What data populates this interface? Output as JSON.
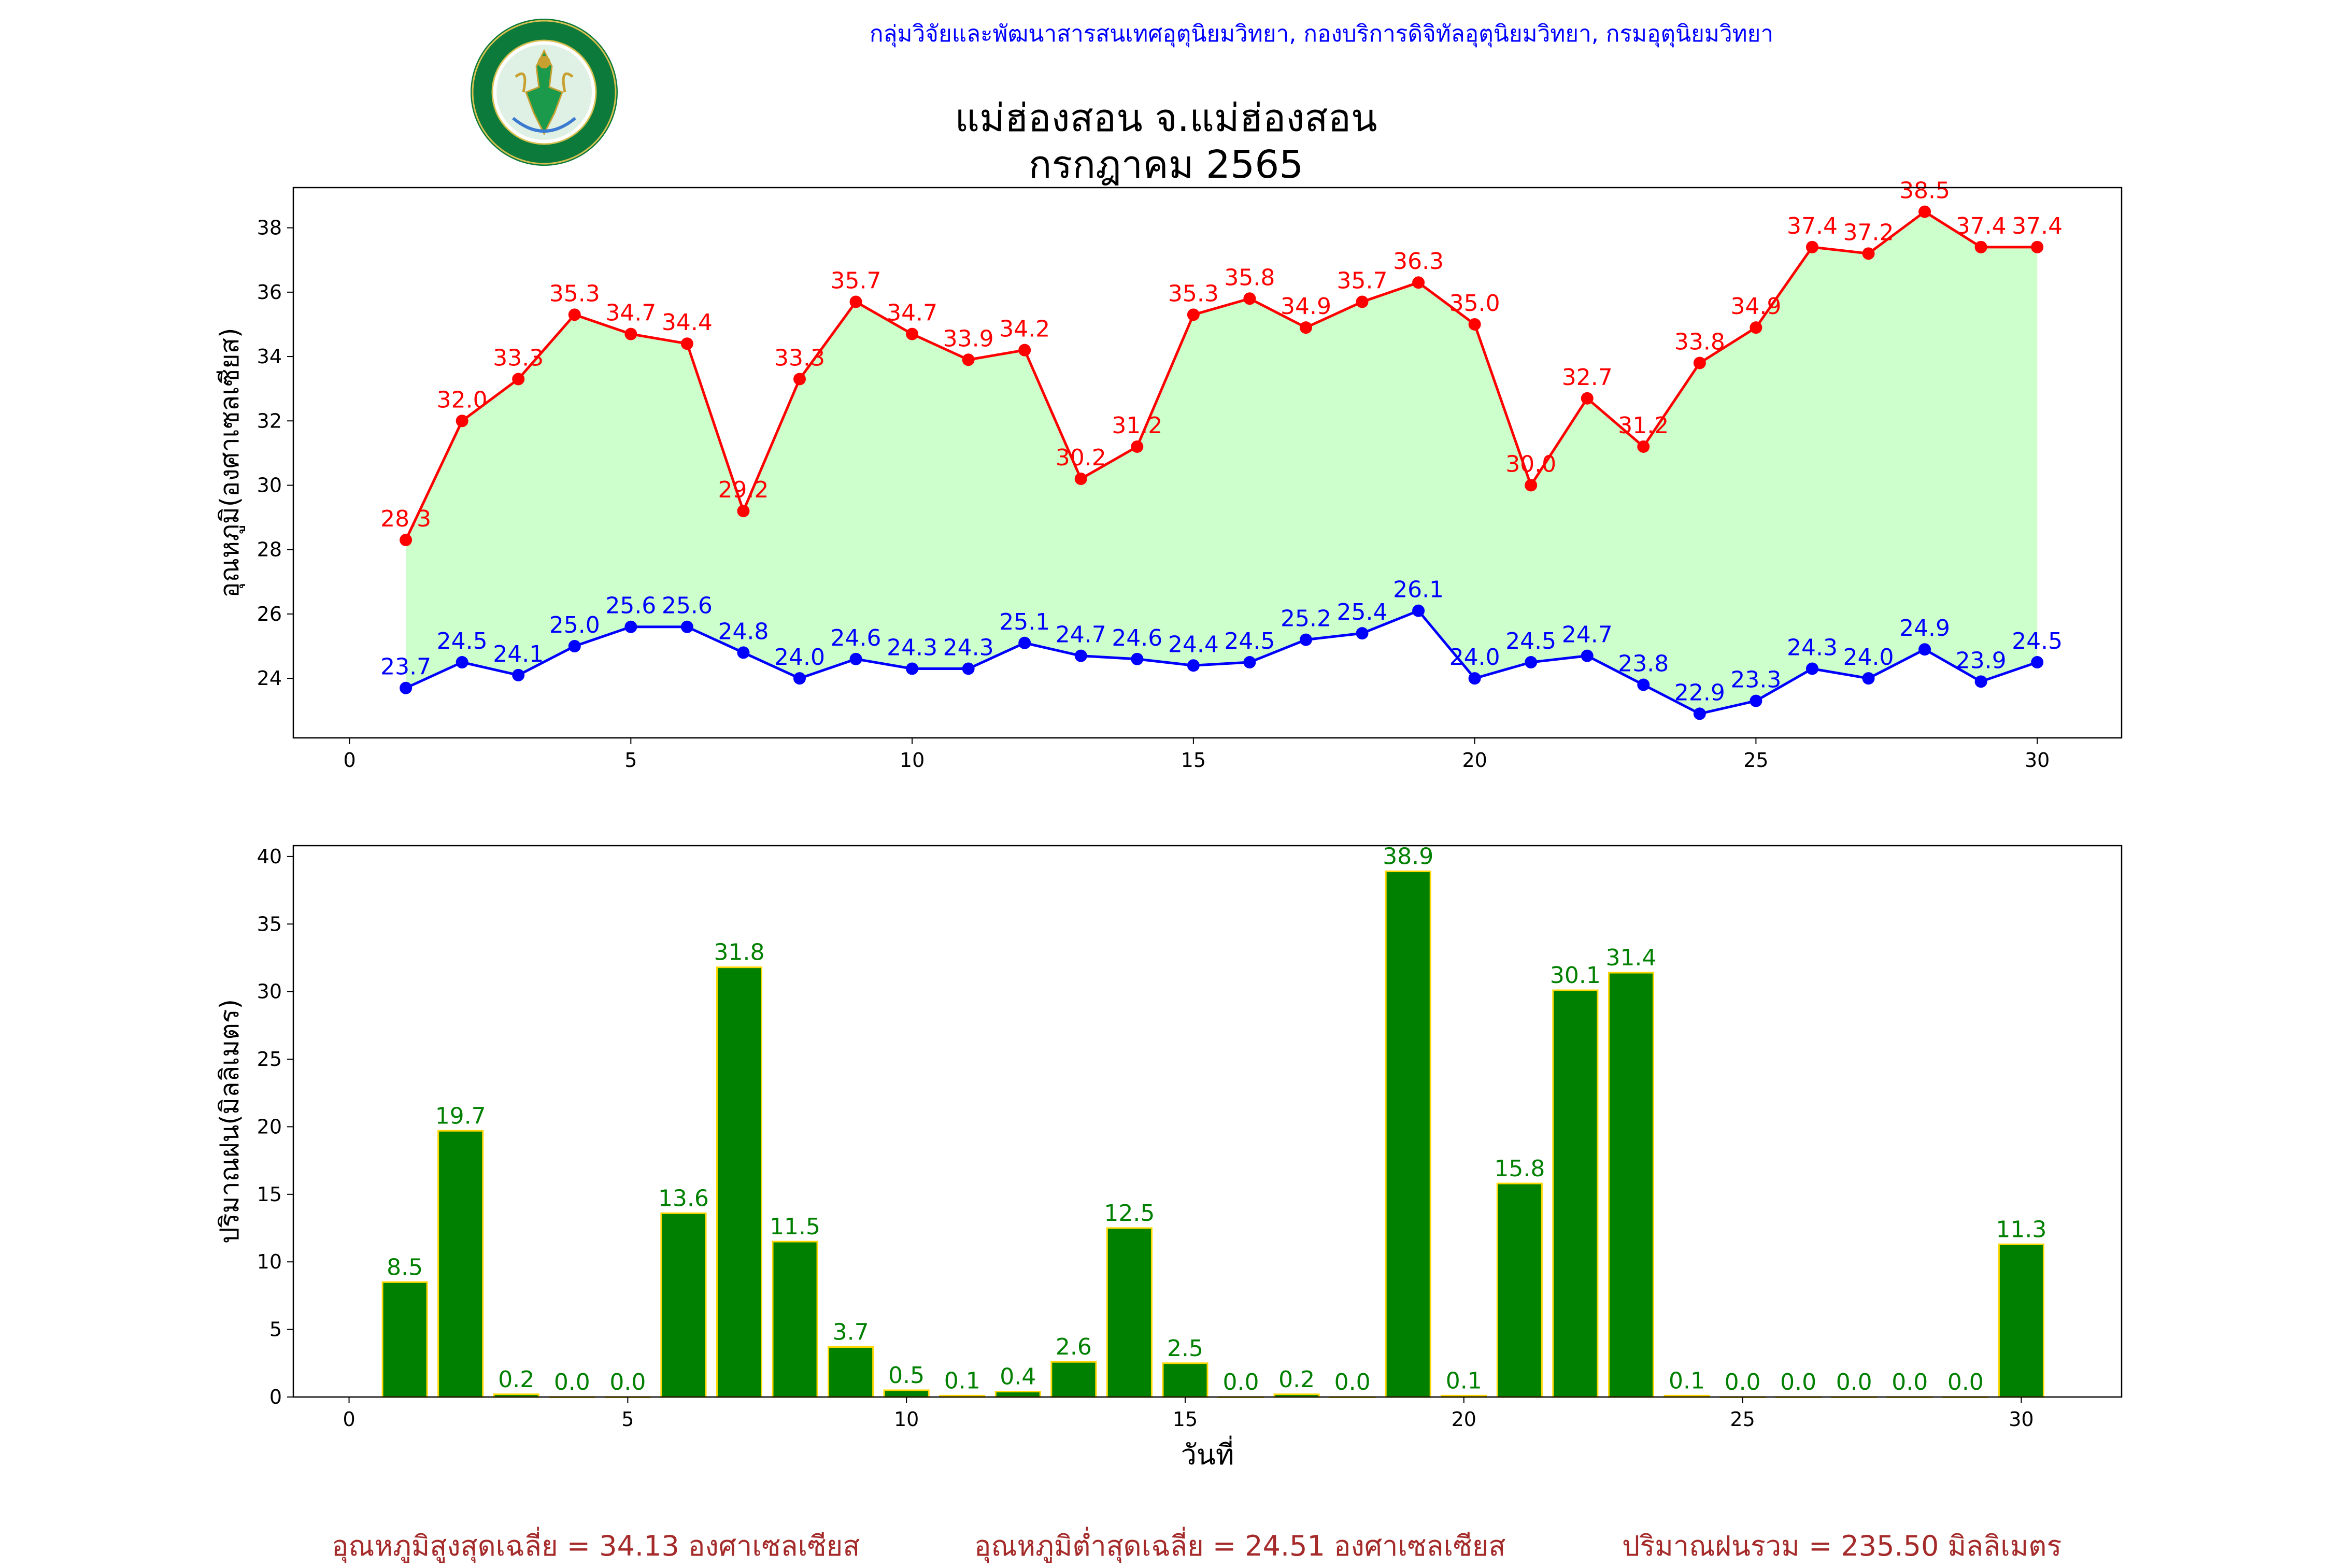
{
  "header": {
    "department": "กลุ่มวิจัยและพัฒนาสารสนเทศอุตุนิยมวิทยา, กองบริการดิจิทัลอุตุนิยมวิทยา, กรมอุตุนิยมวิทยา",
    "title_line1": "แม่ฮ่องสอน จ.แม่ฮ่องสอน",
    "title_line2": "กรกฎาคม 2565",
    "logo_text_top": "กรมอุตุนิยมวิทยา",
    "logo_text_bottom": "METEOROLOGICAL DEPARTMENT"
  },
  "footer": {
    "avg_max": "อุณหภูมิสูงสุดเฉลี่ย = 34.13 องศาเซลเซียส",
    "avg_min": "อุณหภูมิต่ำสุดเฉลี่ย = 24.51 องศาเซลเซียส",
    "rain_total": "ปริมาณฝนรวม = 235.50 มิลลิเมตร"
  },
  "colors": {
    "max_line": "#ff0000",
    "min_line": "#0000ff",
    "fill": "#ccffcc",
    "bar": "#008000",
    "bar_edge": "#ffd700",
    "bar_label": "#008000",
    "footer": "#a52a2a",
    "dept": "#0000ff"
  },
  "chart_data": [
    {
      "type": "line",
      "ylabel": "อุณหภูมิ(องศาเซลเซียส)",
      "xlabel": "",
      "xlim": [
        -1,
        31.5
      ],
      "ylim": [
        22.15,
        39.25
      ],
      "xticks": [
        0,
        5,
        10,
        15,
        20,
        25,
        30
      ],
      "yticks": [
        24,
        26,
        28,
        30,
        32,
        34,
        36,
        38
      ],
      "x": [
        1,
        2,
        3,
        4,
        5,
        6,
        7,
        8,
        9,
        10,
        11,
        12,
        13,
        14,
        15,
        16,
        17,
        18,
        19,
        20,
        21,
        22,
        23,
        24,
        25,
        26,
        27,
        28,
        29,
        30
      ],
      "series": [
        {
          "values": [
            28.3,
            32.0,
            33.3,
            35.3,
            34.7,
            34.4,
            29.2,
            33.3,
            35.7,
            34.7,
            33.9,
            34.2,
            30.2,
            31.2,
            35.3,
            35.8,
            34.9,
            35.7,
            36.3,
            35.0,
            30.0,
            32.7,
            31.2,
            33.8,
            34.9,
            37.4,
            37.2,
            38.5,
            37.4,
            37.4
          ]
        },
        {
          "values": [
            23.7,
            24.5,
            24.1,
            25.0,
            25.6,
            25.6,
            24.8,
            24.0,
            24.6,
            24.3,
            24.3,
            25.1,
            24.7,
            24.6,
            24.4,
            24.5,
            25.2,
            25.4,
            26.1,
            24.0,
            24.5,
            24.7,
            23.8,
            22.9,
            23.3,
            24.3,
            24.0,
            24.9,
            23.9,
            24.5
          ]
        }
      ]
    },
    {
      "type": "bar",
      "ylabel": "ปริมาณฝน(มิลลิเมตร)",
      "xlabel": "วันที่",
      "xlim": [
        -1,
        31.8
      ],
      "ylim": [
        0,
        40.8
      ],
      "xticks": [
        0,
        5,
        10,
        15,
        20,
        25,
        30
      ],
      "yticks": [
        0,
        5,
        10,
        15,
        20,
        25,
        30,
        35,
        40
      ],
      "categories": [
        1,
        2,
        3,
        4,
        5,
        6,
        7,
        8,
        9,
        10,
        11,
        12,
        13,
        14,
        15,
        16,
        17,
        18,
        19,
        20,
        21,
        22,
        23,
        24,
        25,
        26,
        27,
        28,
        29,
        30
      ],
      "values": [
        8.5,
        19.7,
        0.2,
        0.0,
        0.0,
        13.6,
        31.8,
        11.5,
        3.7,
        0.5,
        0.1,
        0.4,
        2.6,
        12.5,
        2.5,
        0.0,
        0.2,
        0.0,
        38.9,
        0.1,
        15.8,
        30.1,
        31.4,
        0.1,
        0.0,
        0.0,
        0.0,
        0.0,
        0.0,
        11.3
      ]
    }
  ]
}
